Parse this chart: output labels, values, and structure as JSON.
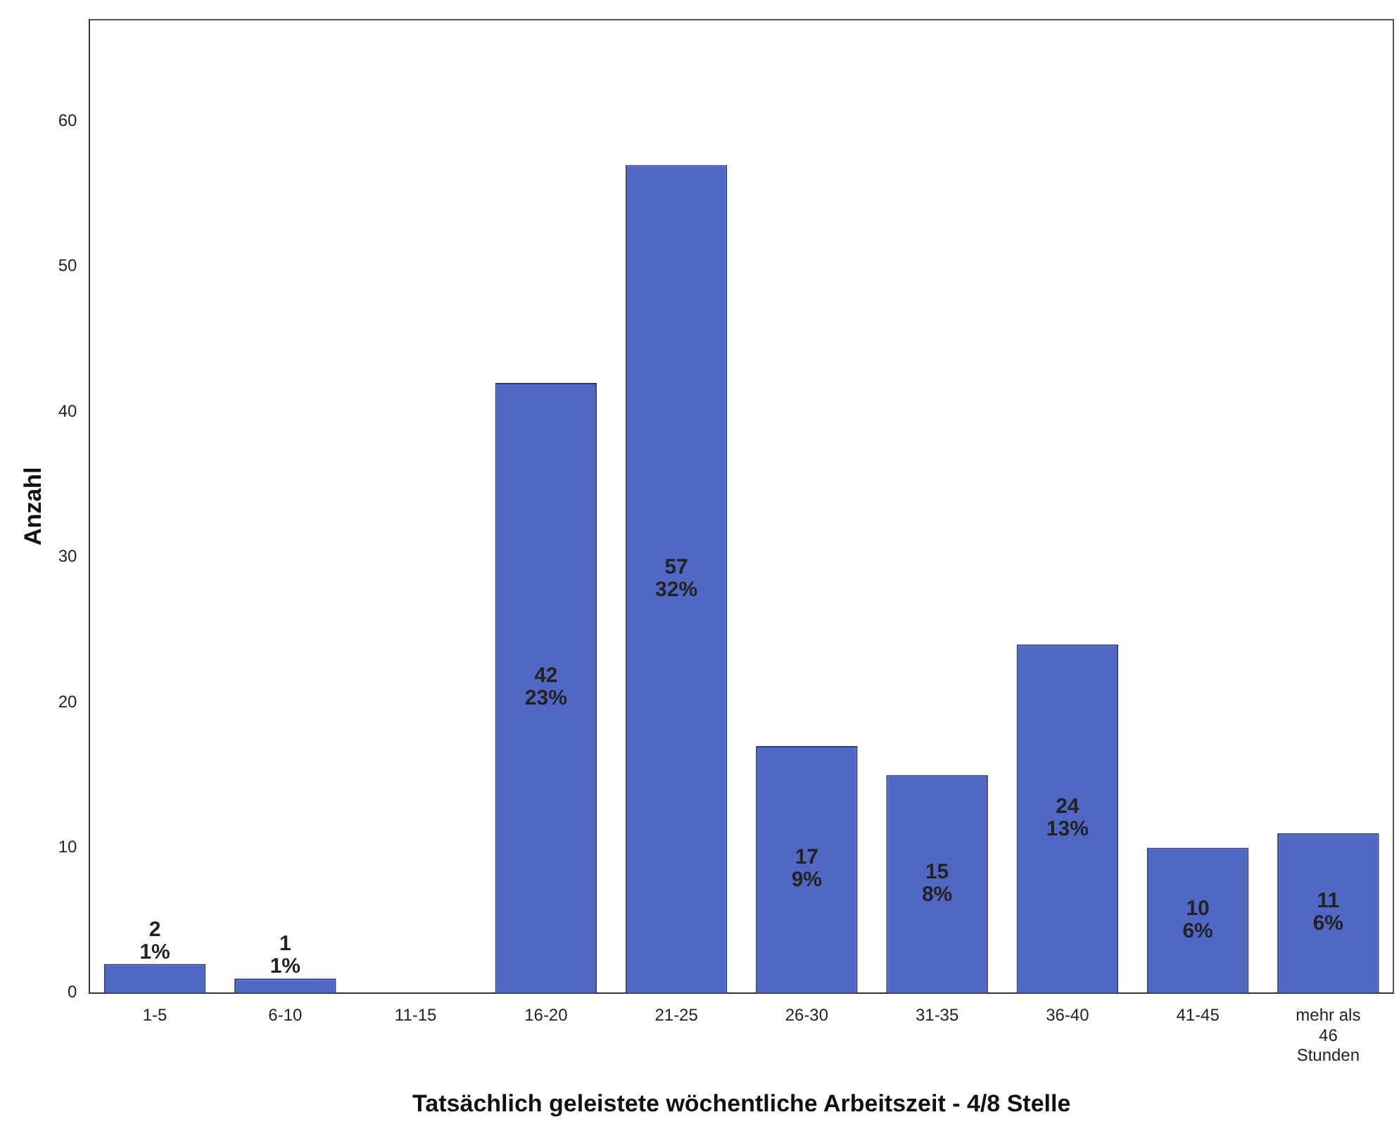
{
  "chart_data": {
    "type": "bar",
    "xlabel": "Tatsächlich geleistete wöchentliche Arbeitszeit - 4/8 Stelle",
    "ylabel": "Anzahl",
    "categories": [
      "1-5",
      "6-10",
      "11-15",
      "16-20",
      "21-25",
      "26-30",
      "31-35",
      "36-40",
      "41-45",
      "mehr als 46 Stunden"
    ],
    "values": [
      2,
      1,
      0,
      42,
      57,
      17,
      15,
      24,
      10,
      11
    ],
    "value_labels": [
      "2\n1%",
      "1\n1%",
      null,
      "42\n23%",
      "57\n32%",
      "17\n9%",
      "15\n8%",
      "24\n13%",
      "10\n6%",
      "11\n6%"
    ],
    "color": "#5068c4",
    "ylim": [
      0,
      67
    ],
    "yticks": [
      0,
      10,
      20,
      30,
      40,
      50,
      60
    ],
    "grid": false,
    "legend": false
  }
}
